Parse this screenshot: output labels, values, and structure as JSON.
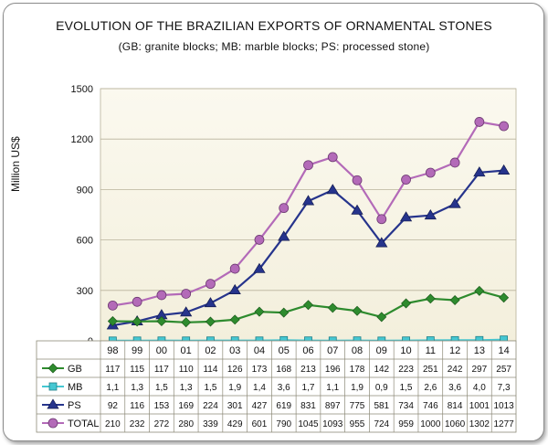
{
  "chart_data": {
    "type": "line",
    "title": "EVOLUTION OF THE BRAZILIAN EXPORTS OF ORNAMENTAL STONES",
    "subtitle": "(GB: granite blocks; MB: marble blocks; PS: processed stone)",
    "ylabel": "Million US$",
    "xlabel": "",
    "ylim": [
      0,
      1500
    ],
    "yticks": [
      "0",
      "300",
      "600",
      "900",
      "1200",
      "1500"
    ],
    "ytick_values": [
      0,
      300,
      600,
      900,
      1200,
      1500
    ],
    "categories": [
      "98",
      "99",
      "00",
      "01",
      "02",
      "03",
      "04",
      "05",
      "06",
      "07",
      "08",
      "09",
      "10",
      "11",
      "12",
      "13",
      "14"
    ],
    "grid": true,
    "legend": "data-table-below",
    "series": [
      {
        "name": "GB",
        "color": "#2e8b2e",
        "marker": "diamond",
        "values": [
          117,
          115,
          117,
          110,
          114,
          126,
          173,
          168,
          213,
          196,
          178,
          142,
          223,
          251,
          242,
          297,
          257
        ],
        "labels": [
          "117",
          "115",
          "117",
          "110",
          "114",
          "126",
          "173",
          "168",
          "213",
          "196",
          "178",
          "142",
          "223",
          "251",
          "242",
          "297",
          "257"
        ]
      },
      {
        "name": "MB",
        "color": "#45c7d2",
        "marker": "square",
        "values": [
          1.1,
          1.3,
          1.5,
          1.3,
          1.5,
          1.9,
          1.4,
          3.6,
          1.7,
          1.1,
          1.9,
          0.9,
          1.5,
          2.6,
          3.6,
          4.0,
          7.3
        ],
        "labels": [
          "1,1",
          "1,3",
          "1,5",
          "1,3",
          "1,5",
          "1,9",
          "1,4",
          "3,6",
          "1,7",
          "1,1",
          "1,9",
          "0,9",
          "1,5",
          "2,6",
          "3,6",
          "4,0",
          "7,3"
        ]
      },
      {
        "name": "PS",
        "color": "#26348c",
        "marker": "triangle",
        "values": [
          92,
          116,
          153,
          169,
          224,
          301,
          427,
          619,
          831,
          897,
          775,
          581,
          734,
          746,
          814,
          1001,
          1013
        ],
        "labels": [
          "92",
          "116",
          "153",
          "169",
          "224",
          "301",
          "427",
          "619",
          "831",
          "897",
          "775",
          "581",
          "734",
          "746",
          "814",
          "1001",
          "1013"
        ]
      },
      {
        "name": "TOTAL",
        "color": "#b36ab8",
        "marker": "circle",
        "values": [
          210,
          232,
          272,
          280,
          339,
          429,
          601,
          790,
          1045,
          1093,
          955,
          724,
          959,
          1000,
          1060,
          1302,
          1277
        ],
        "labels": [
          "210",
          "232",
          "272",
          "280",
          "339",
          "429",
          "601",
          "790",
          "1045",
          "1093",
          "955",
          "724",
          "959",
          "1000",
          "1060",
          "1302",
          "1277"
        ]
      }
    ]
  }
}
